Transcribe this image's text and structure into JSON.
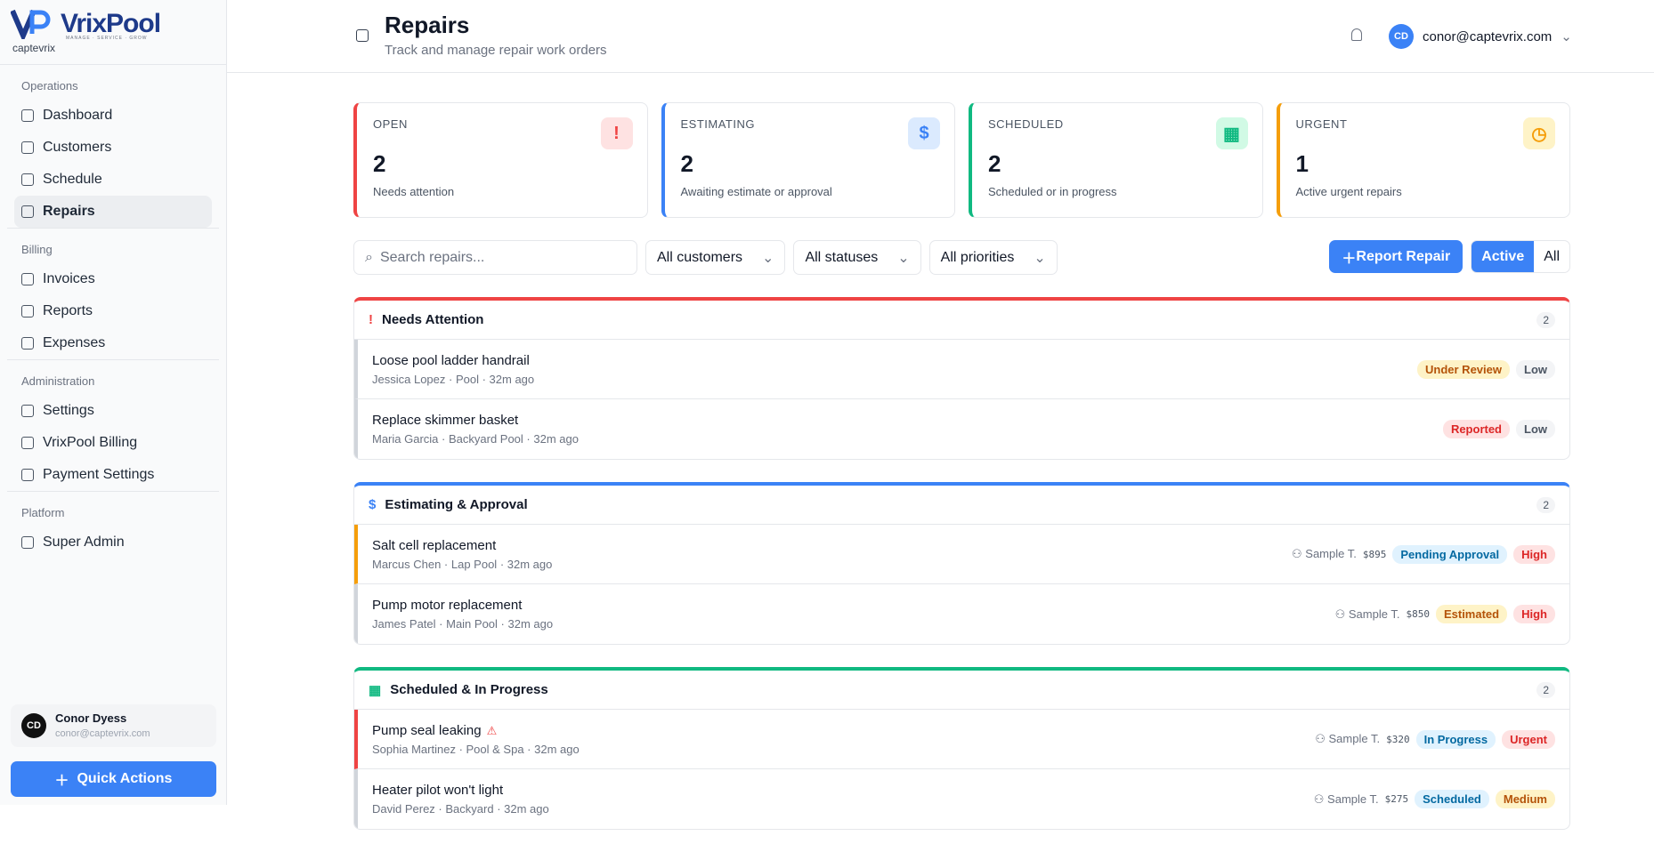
{
  "brand": {
    "name": "VrixPool",
    "tagline": "MANAGE · SERVICE · GROW",
    "org": "captevrix"
  },
  "sidebar": [
    {
      "title": "Operations",
      "items": [
        {
          "label": "Dashboard"
        },
        {
          "label": "Customers"
        },
        {
          "label": "Schedule"
        },
        {
          "label": "Repairs",
          "active": true
        }
      ]
    },
    {
      "title": "Billing",
      "items": [
        {
          "label": "Invoices"
        },
        {
          "label": "Reports"
        },
        {
          "label": "Expenses"
        }
      ]
    },
    {
      "title": "Administration",
      "items": [
        {
          "label": "Settings"
        },
        {
          "label": "VrixPool Billing"
        },
        {
          "label": "Payment Settings"
        }
      ]
    },
    {
      "title": "Platform",
      "items": [
        {
          "label": "Super Admin"
        }
      ]
    }
  ],
  "user": {
    "initials": "CD",
    "name": "Conor Dyess",
    "email": "conor@captevrix.com"
  },
  "quick_actions": "Quick Actions",
  "header": {
    "title": "Repairs",
    "subtitle": "Track and manage repair work orders",
    "initials": "CD",
    "email": "conor@captevrix.com"
  },
  "stats": [
    {
      "label": "OPEN",
      "value": "2",
      "note": "Needs attention",
      "color": "#ef4444",
      "bg": "#fee2e2",
      "icon": "!"
    },
    {
      "label": "ESTIMATING",
      "value": "2",
      "note": "Awaiting estimate or approval",
      "color": "#3b82f6",
      "bg": "#dbeafe",
      "icon": "$"
    },
    {
      "label": "SCHEDULED",
      "value": "2",
      "note": "Scheduled or in progress",
      "color": "#10b981",
      "bg": "#d1fae5",
      "icon": "▦"
    },
    {
      "label": "URGENT",
      "value": "1",
      "note": "Active urgent repairs",
      "color": "#f59e0b",
      "bg": "#fef3c7",
      "icon": "◷"
    }
  ],
  "filters": {
    "search": "Search repairs...",
    "selects": [
      "All customers",
      "All statuses",
      "All priorities"
    ],
    "report": "Report Repair",
    "toggle": [
      "Active",
      "All"
    ]
  },
  "groups": [
    {
      "title": "Needs Attention",
      "count": "2",
      "color": "#ef4444",
      "icon": "!",
      "items": [
        {
          "title": "Loose pool ladder handrail",
          "customer": "Jessica Lopez",
          "pool": "Pool",
          "time": "32m ago",
          "status": "Under Review",
          "status_tone": "amber",
          "priority": "Low",
          "priority_tone": "gray",
          "accent": "#d1d5db"
        },
        {
          "title": "Replace skimmer basket",
          "customer": "Maria Garcia",
          "pool": "Backyard Pool",
          "time": "32m ago",
          "status": "Reported",
          "status_tone": "red",
          "priority": "Low",
          "priority_tone": "gray",
          "accent": "#d1d5db"
        }
      ]
    },
    {
      "title": "Estimating & Approval",
      "count": "2",
      "color": "#3b82f6",
      "icon": "$",
      "items": [
        {
          "title": "Salt cell replacement",
          "customer": "Marcus Chen",
          "pool": "Lap Pool",
          "time": "32m ago",
          "tech": "Sample T.",
          "amount": "$895",
          "status": "Pending Approval",
          "status_tone": "blue",
          "priority": "High",
          "priority_tone": "red",
          "accent": "#f59e0b"
        },
        {
          "title": "Pump motor replacement",
          "customer": "James Patel",
          "pool": "Main Pool",
          "time": "32m ago",
          "tech": "Sample T.",
          "amount": "$850",
          "status": "Estimated",
          "status_tone": "amber",
          "priority": "High",
          "priority_tone": "red",
          "accent": "#d1d5db"
        }
      ]
    },
    {
      "title": "Scheduled & In Progress",
      "count": "2",
      "color": "#10b981",
      "icon": "▦",
      "items": [
        {
          "title": "Pump seal leaking",
          "urgent": true,
          "customer": "Sophia Martinez",
          "pool": "Pool & Spa",
          "time": "32m ago",
          "tech": "Sample T.",
          "amount": "$320",
          "status": "In Progress",
          "status_tone": "blue",
          "priority": "Urgent",
          "priority_tone": "red",
          "accent": "#ef4444"
        },
        {
          "title": "Heater pilot won't light",
          "customer": "David Perez",
          "pool": "Backyard",
          "time": "32m ago",
          "tech": "Sample T.",
          "amount": "$275",
          "status": "Scheduled",
          "status_tone": "blue",
          "priority": "Medium",
          "priority_tone": "amber",
          "accent": "#d1d5db"
        }
      ]
    }
  ]
}
